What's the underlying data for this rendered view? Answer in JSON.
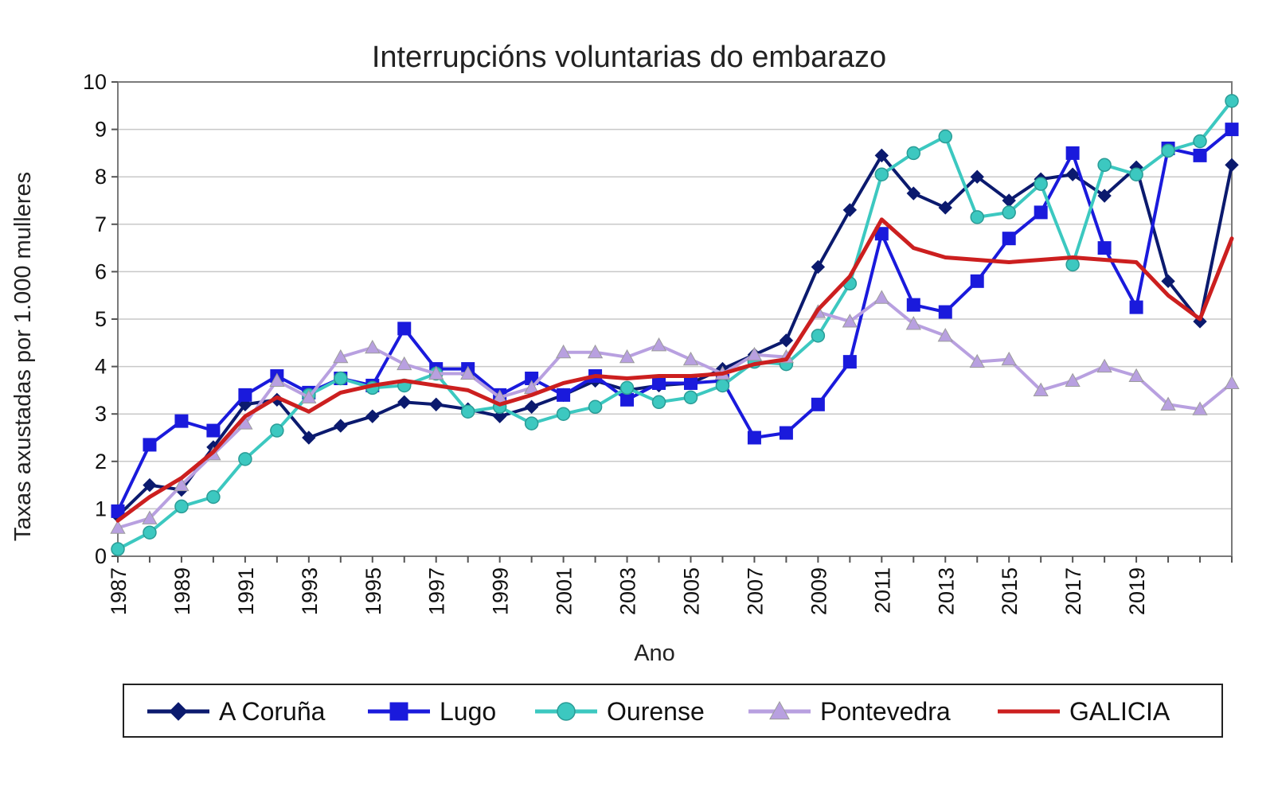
{
  "chart_data": {
    "type": "line",
    "title": "Interrupcións voluntarias do embarazo",
    "xlabel": "Ano",
    "ylabel": "Taxas axustadas por 1.000 mulleres",
    "ylim": [
      0,
      10
    ],
    "yticks": [
      "0",
      "1",
      "2",
      "3",
      "4",
      "5",
      "6",
      "7",
      "8",
      "9",
      "10"
    ],
    "x": [
      1987,
      1988,
      1989,
      1990,
      1991,
      1992,
      1993,
      1994,
      1995,
      1996,
      1997,
      1998,
      1999,
      2000,
      2001,
      2002,
      2003,
      2004,
      2005,
      2006,
      2007,
      2008,
      2009,
      2010,
      2011,
      2012,
      2013,
      2014,
      2015,
      2016,
      2017,
      2018,
      2019,
      2020,
      2021,
      2022
    ],
    "xtick_labels": [
      "1987",
      "1989",
      "1991",
      "1993",
      "1995",
      "1997",
      "1999",
      "2001",
      "2003",
      "2005",
      "2007",
      "2009",
      "2011",
      "2013",
      "2015",
      "2017",
      "2019"
    ],
    "grid": true,
    "legend_position": "bottom",
    "series": [
      {
        "name": "A Coruña",
        "color": "#0b1a6e",
        "marker": "diamond",
        "values": [
          0.85,
          1.5,
          1.4,
          2.3,
          3.2,
          3.3,
          2.5,
          2.75,
          2.95,
          3.25,
          3.2,
          3.1,
          2.95,
          3.15,
          3.4,
          3.7,
          3.5,
          3.6,
          3.65,
          3.95,
          4.25,
          4.55,
          6.1,
          7.3,
          8.45,
          7.65,
          7.35,
          8.0,
          7.5,
          7.95,
          8.05,
          7.6,
          8.2,
          5.8,
          4.95,
          8.25
        ]
      },
      {
        "name": "Lugo",
        "color": "#1a1adc",
        "marker": "square",
        "values": [
          0.95,
          2.35,
          2.85,
          2.65,
          3.4,
          3.8,
          3.45,
          3.75,
          3.6,
          4.8,
          3.95,
          3.95,
          3.4,
          3.75,
          3.4,
          3.8,
          3.3,
          3.65,
          3.65,
          3.7,
          2.5,
          2.6,
          3.2,
          4.1,
          6.8,
          5.3,
          5.15,
          5.8,
          6.7,
          7.25,
          8.5,
          6.5,
          5.25,
          8.6,
          8.45,
          9.0
        ]
      },
      {
        "name": "Ourense",
        "color": "#3cc8c0",
        "marker": "circle",
        "values": [
          0.15,
          0.5,
          1.05,
          1.25,
          2.05,
          2.65,
          3.4,
          3.75,
          3.55,
          3.6,
          3.85,
          3.05,
          3.15,
          2.8,
          3.0,
          3.15,
          3.55,
          3.25,
          3.35,
          3.6,
          4.1,
          4.05,
          4.65,
          5.75,
          8.05,
          8.5,
          8.85,
          7.15,
          7.25,
          7.85,
          6.15,
          8.25,
          8.05,
          8.55,
          8.75,
          9.6
        ]
      },
      {
        "name": "Pontevedra",
        "color": "#b8a0e0",
        "marker": "triangle",
        "values": [
          0.6,
          0.8,
          1.5,
          2.15,
          2.8,
          3.7,
          3.35,
          4.2,
          4.4,
          4.05,
          3.85,
          3.85,
          3.35,
          3.55,
          4.3,
          4.3,
          4.2,
          4.45,
          4.15,
          3.85,
          4.25,
          4.2,
          5.15,
          4.95,
          5.45,
          4.9,
          4.65,
          4.1,
          4.15,
          3.5,
          3.7,
          4.0,
          3.8,
          3.2,
          3.1,
          3.65
        ]
      },
      {
        "name": "GALICIA",
        "color": "#cc1f1f",
        "marker": "none",
        "values": [
          0.75,
          1.25,
          1.65,
          2.2,
          2.95,
          3.35,
          3.05,
          3.45,
          3.6,
          3.7,
          3.6,
          3.5,
          3.2,
          3.4,
          3.65,
          3.8,
          3.75,
          3.8,
          3.8,
          3.85,
          4.05,
          4.15,
          5.2,
          5.9,
          7.1,
          6.5,
          6.3,
          6.25,
          6.2,
          6.25,
          6.3,
          6.25,
          6.2,
          5.5,
          5.0,
          6.7
        ]
      }
    ]
  }
}
